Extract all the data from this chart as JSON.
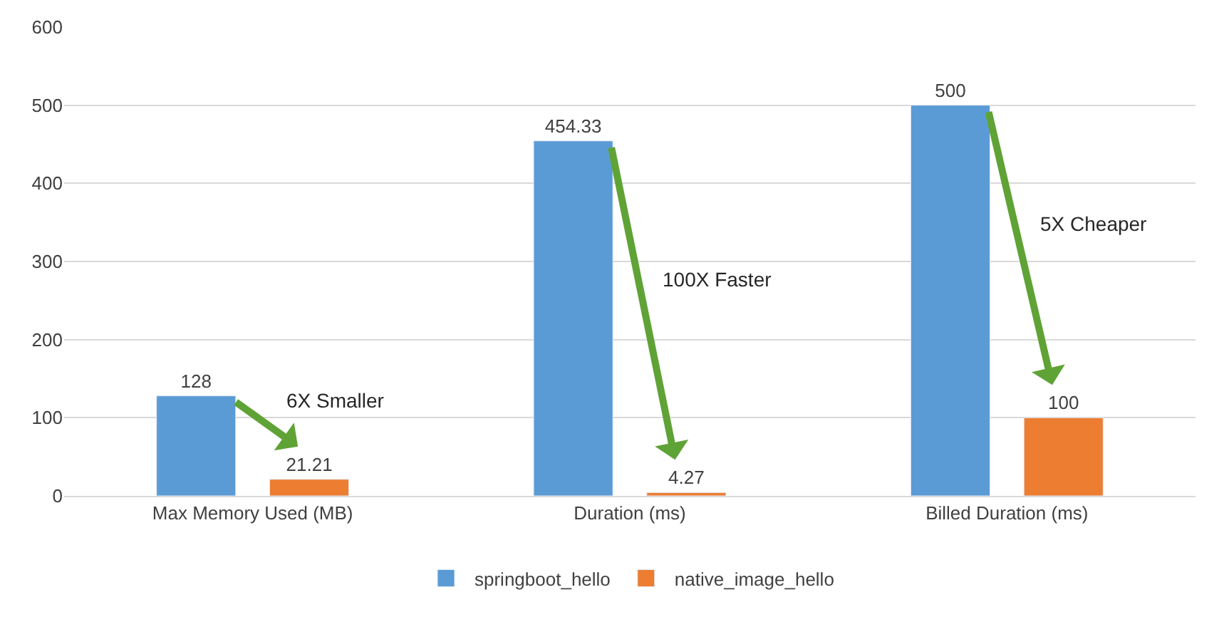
{
  "chart_data": {
    "type": "bar",
    "categories": [
      "Max Memory Used (MB)",
      "Duration (ms)",
      "Billed Duration (ms)"
    ],
    "series": [
      {
        "name": "springboot_hello",
        "color": "#5b9bd5",
        "values": [
          128,
          454.33,
          500
        ]
      },
      {
        "name": "native_image_hello",
        "color": "#ed7d31",
        "values": [
          21.21,
          4.27,
          100
        ]
      }
    ],
    "ylim": [
      0,
      600
    ],
    "yticks": [
      0,
      100,
      200,
      300,
      400,
      500,
      600
    ],
    "grid": "y",
    "legend": "bottom",
    "data_labels": true,
    "annotations": [
      "6X Smaller",
      "100X Faster",
      "5X Cheaper"
    ]
  }
}
